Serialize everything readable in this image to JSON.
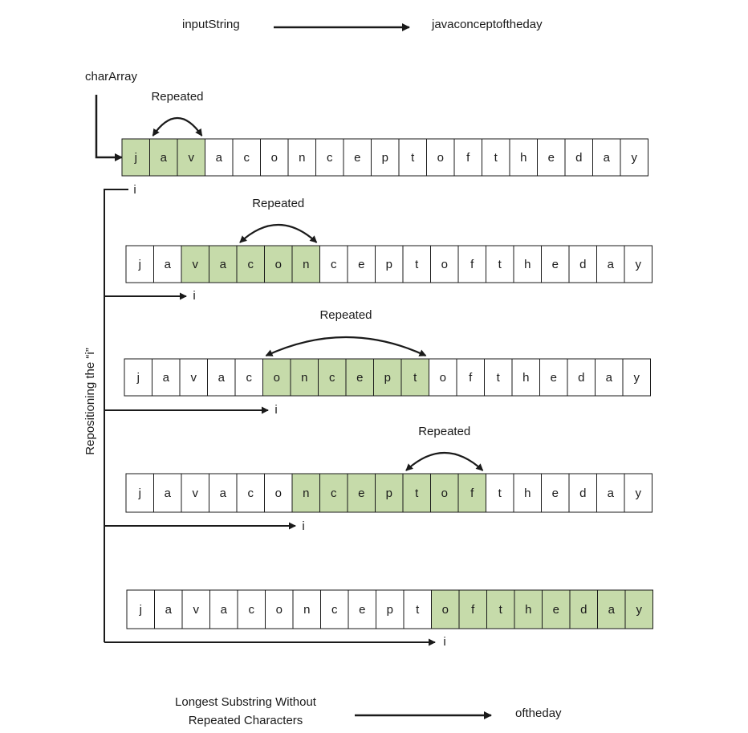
{
  "top": {
    "input_label": "inputString",
    "input_value": "javaconceptoftheday",
    "array_label": "charArray"
  },
  "side_label": "Repositioning the “i”",
  "repeated_label": "Repeated",
  "pointer_label": "i",
  "rows": [
    {
      "chars": [
        "j",
        "a",
        "v",
        "a",
        "c",
        "o",
        "n",
        "c",
        "e",
        "p",
        "t",
        "o",
        "f",
        "t",
        "h",
        "e",
        "d",
        "a",
        "y"
      ],
      "highlight": [
        0,
        2
      ],
      "repeat_from": 1,
      "repeat_to": 3
    },
    {
      "chars": [
        "j",
        "a",
        "v",
        "a",
        "c",
        "o",
        "n",
        "c",
        "e",
        "p",
        "t",
        "o",
        "f",
        "t",
        "h",
        "e",
        "d",
        "a",
        "y"
      ],
      "highlight": [
        2,
        6
      ],
      "repeat_from": 4,
      "repeat_to": 7
    },
    {
      "chars": [
        "j",
        "a",
        "v",
        "a",
        "c",
        "o",
        "n",
        "c",
        "e",
        "p",
        "t",
        "o",
        "f",
        "t",
        "h",
        "e",
        "d",
        "a",
        "y"
      ],
      "highlight": [
        5,
        10
      ],
      "repeat_from": 5,
      "repeat_to": 11
    },
    {
      "chars": [
        "j",
        "a",
        "v",
        "a",
        "c",
        "o",
        "n",
        "c",
        "e",
        "p",
        "t",
        "o",
        "f",
        "t",
        "h",
        "e",
        "d",
        "a",
        "y"
      ],
      "highlight": [
        6,
        12
      ],
      "repeat_from": 10,
      "repeat_to": 13
    },
    {
      "chars": [
        "j",
        "a",
        "v",
        "a",
        "c",
        "o",
        "n",
        "c",
        "e",
        "p",
        "t",
        "o",
        "f",
        "t",
        "h",
        "e",
        "d",
        "a",
        "y"
      ],
      "highlight": [
        11,
        18
      ]
    }
  ],
  "result": {
    "label_line1": "Longest Substring Without",
    "label_line2": "Repeated Characters",
    "value": "oftheday"
  },
  "colors": {
    "highlight": "#c6dbaa",
    "border": "#1a1a1a",
    "arrow": "#1a1a1a"
  }
}
